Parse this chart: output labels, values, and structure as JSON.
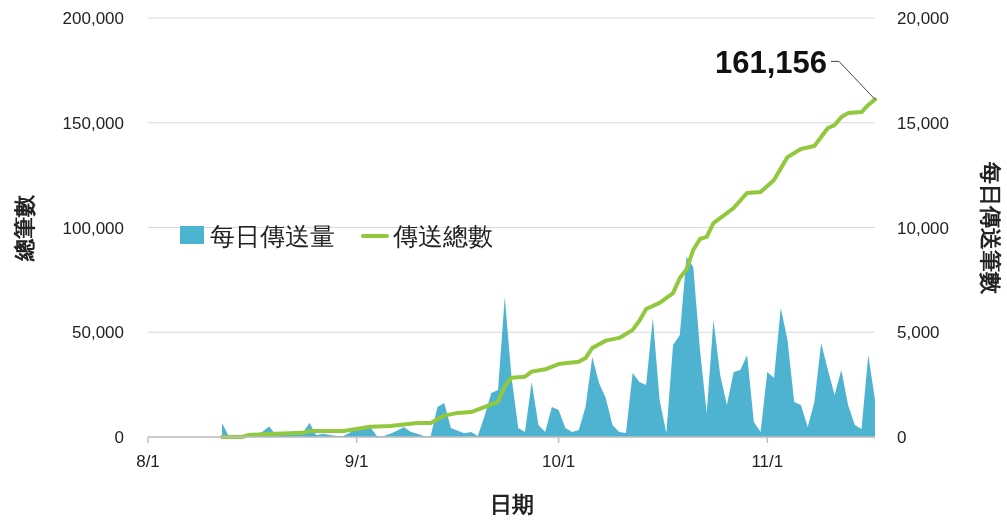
{
  "chart_data": {
    "type": "area",
    "xlabel": "日期",
    "ylabel": "總筆數",
    "y2label": "每日傳送筆數",
    "grid": "y",
    "legend": "left",
    "xlim": [
      "--08-01",
      "--11-17"
    ],
    "xticks": [
      {
        "value": "--08-01",
        "label": "8/1"
      },
      {
        "value": "--09-01",
        "label": "9/1"
      },
      {
        "value": "--10-01",
        "label": "10/1"
      },
      {
        "value": "--11-01",
        "label": "11/1"
      }
    ],
    "ylim": [
      0,
      200000
    ],
    "yticks": [
      0,
      {
        "value": 50000,
        "label": "50,000"
      },
      {
        "value": 100000,
        "label": "100,000"
      },
      {
        "value": 150000,
        "label": "150,000"
      },
      {
        "value": 200000,
        "label": "200,000"
      }
    ],
    "y2lim": [
      0,
      20000
    ],
    "y2ticks": [
      0,
      {
        "value": 5000,
        "label": "5,000"
      },
      {
        "value": 10000,
        "label": "10,000"
      },
      {
        "value": 15000,
        "label": "15,000"
      },
      {
        "value": 20000,
        "label": "20,000"
      }
    ],
    "x": [
      "--08-12",
      "--08-13",
      "--08-14",
      "--08-15",
      "--08-16",
      "--08-17",
      "--08-18",
      "--08-19",
      "--08-20",
      "--08-21",
      "--08-22",
      "--08-23",
      "--08-24",
      "--08-25",
      "--08-26",
      "--08-27",
      "--08-28",
      "--08-29",
      "--08-30",
      "--08-31",
      "--09-01",
      "--09-02",
      "--09-03",
      "--09-04",
      "--09-05",
      "--09-06",
      "--09-07",
      "--09-08",
      "--09-09",
      "--09-10",
      "--09-11",
      "--09-12",
      "--09-13",
      "--09-14",
      "--09-15",
      "--09-16",
      "--09-17",
      "--09-18",
      "--09-19",
      "--09-20",
      "--09-21",
      "--09-22",
      "--09-23",
      "--09-24",
      "--09-25",
      "--09-26",
      "--09-27",
      "--09-28",
      "--09-29",
      "--09-30",
      "--10-01",
      "--10-02",
      "--10-03",
      "--10-04",
      "--10-05",
      "--10-06",
      "--10-07",
      "--10-08",
      "--10-09",
      "--10-10",
      "--10-11",
      "--10-12",
      "--10-13",
      "--10-14",
      "--10-15",
      "--10-16",
      "--10-17",
      "--10-18",
      "--10-19",
      "--10-20",
      "--10-21",
      "--10-22",
      "--10-23",
      "--10-24",
      "--10-25",
      "--10-26",
      "--10-27",
      "--10-28",
      "--10-29",
      "--10-30",
      "--10-31",
      "--11-01",
      "--11-02",
      "--11-03",
      "--11-04",
      "--11-05",
      "--11-06",
      "--11-07",
      "--11-08",
      "--11-09",
      "--11-10",
      "--11-11",
      "--11-12",
      "--11-13",
      "--11-14",
      "--11-15",
      "--11-16",
      "--11-17"
    ],
    "series": [
      {
        "name": "每日傳送量",
        "type": "area",
        "axis": "y2",
        "color": "#4db3d1",
        "values": [
          670,
          30,
          30,
          50,
          50,
          80,
          250,
          500,
          100,
          100,
          100,
          100,
          200,
          670,
          80,
          150,
          100,
          50,
          50,
          200,
          480,
          480,
          480,
          50,
          50,
          150,
          300,
          480,
          250,
          150,
          50,
          50,
          1430,
          1620,
          430,
          300,
          175,
          240,
          50,
          1000,
          2100,
          2240,
          6680,
          2860,
          430,
          240,
          2620,
          570,
          240,
          1430,
          1290,
          430,
          240,
          330,
          1430,
          3820,
          2580,
          1860,
          570,
          240,
          190,
          3050,
          2620,
          2480,
          5680,
          1770,
          190,
          4390,
          4870,
          8590,
          8110,
          4150,
          1150,
          5580,
          2960,
          1530,
          3100,
          3200,
          3910,
          720,
          240,
          3100,
          2820,
          6160,
          4630,
          1670,
          1530,
          480,
          1670,
          4490,
          3200,
          2000,
          3200,
          1530,
          570,
          380,
          3910,
          1770
        ]
      },
      {
        "name": "傳送總數",
        "type": "line",
        "color": "#92c83e",
        "x": [
          "--08-12",
          "--08-15",
          "--08-16",
          "--08-19",
          "--08-24",
          "--08-25",
          "--08-30",
          "--09-01",
          "--09-03",
          "--09-06",
          "--09-10",
          "--09-12",
          "--09-14",
          "--09-16",
          "--09-18",
          "--09-22",
          "--09-23",
          "--09-24",
          "--09-26",
          "--09-27",
          "--09-29",
          "--10-01",
          "--10-04",
          "--10-05",
          "--10-06",
          "--10-08",
          "--10-10",
          "--10-12",
          "--10-13",
          "--10-14",
          "--10-16",
          "--10-18",
          "--10-19",
          "--10-20",
          "--10-21",
          "--10-22",
          "--10-23",
          "--10-24",
          "--10-26",
          "--10-27",
          "--10-29",
          "--10-31",
          "--11-02",
          "--11-04",
          "--11-06",
          "--11-08",
          "--11-10",
          "--11-11",
          "--11-12",
          "--11-13",
          "--11-15",
          "--11-16",
          "--11-17"
        ],
        "values": [
          0,
          0,
          1000,
          1400,
          2000,
          2900,
          2900,
          3800,
          4900,
          5200,
          6700,
          6700,
          10200,
          11500,
          11900,
          16800,
          24300,
          28300,
          28800,
          31200,
          32300,
          34800,
          35900,
          37700,
          42500,
          46000,
          47300,
          51100,
          55500,
          61100,
          64000,
          68700,
          75900,
          80000,
          89300,
          94500,
          95500,
          102100,
          106900,
          109300,
          116500,
          116900,
          122700,
          133600,
          137500,
          138900,
          147500,
          148900,
          152700,
          154600,
          155100,
          158500,
          161156
        ]
      }
    ],
    "annotations": [
      {
        "text": "161,156",
        "x": "--11-17",
        "y": 161156
      }
    ]
  }
}
